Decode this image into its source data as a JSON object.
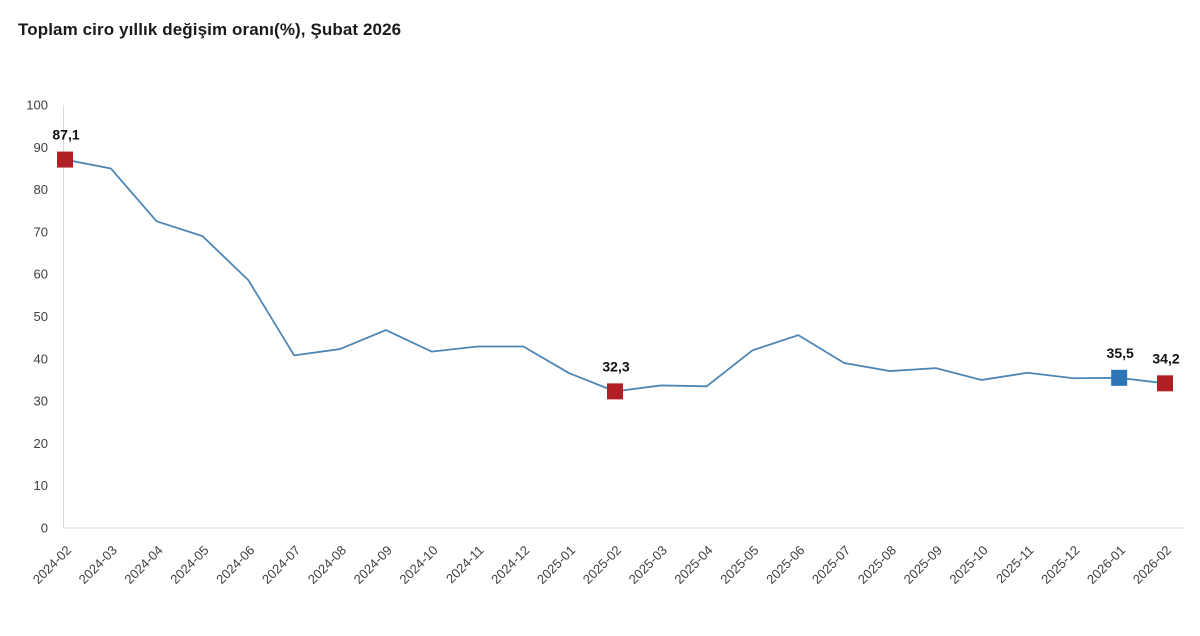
{
  "title": "Toplam ciro yıllık değişim oranı(%), Şubat 2026",
  "chart_data": {
    "type": "line",
    "title": "Toplam ciro yıllık değişim oranı(%), Şubat 2026",
    "xlabel": "",
    "ylabel": "",
    "ylim": [
      0,
      100
    ],
    "ytick_step": 10,
    "grid": false,
    "legend": false,
    "categories": [
      "2024-02",
      "2024-03",
      "2024-04",
      "2024-05",
      "2024-06",
      "2024-07",
      "2024-08",
      "2024-09",
      "2024-10",
      "2024-11",
      "2024-12",
      "2025-01",
      "2025-02",
      "2025-03",
      "2025-04",
      "2025-05",
      "2025-06",
      "2025-07",
      "2025-08",
      "2025-09",
      "2025-10",
      "2025-11",
      "2025-12",
      "2026-01",
      "2026-02"
    ],
    "values": [
      87.1,
      85.0,
      72.5,
      69.0,
      58.6,
      40.8,
      42.3,
      46.8,
      41.7,
      42.9,
      42.9,
      36.6,
      32.3,
      33.7,
      33.5,
      42.0,
      45.6,
      39.0,
      37.1,
      37.8,
      35.0,
      36.7,
      35.4,
      35.5,
      34.2
    ],
    "annotated_points": [
      {
        "category": "2024-02",
        "value": 87.1,
        "label": "87,1",
        "marker_color": "#b01f24"
      },
      {
        "category": "2025-02",
        "value": 32.3,
        "label": "32,3",
        "marker_color": "#b01f24"
      },
      {
        "category": "2026-01",
        "value": 35.5,
        "label": "35,5",
        "marker_color": "#2e75b6"
      },
      {
        "category": "2026-02",
        "value": 34.2,
        "label": "34,2",
        "marker_color": "#b01f24"
      }
    ],
    "colors": {
      "line": "#4e86b5",
      "marker_red": "#b01f24",
      "marker_blue": "#2e75b6",
      "axis_line": "#d9d9d9",
      "tick_label": "#404040",
      "data_label": "#111111",
      "title": "#1a1a1a"
    }
  }
}
